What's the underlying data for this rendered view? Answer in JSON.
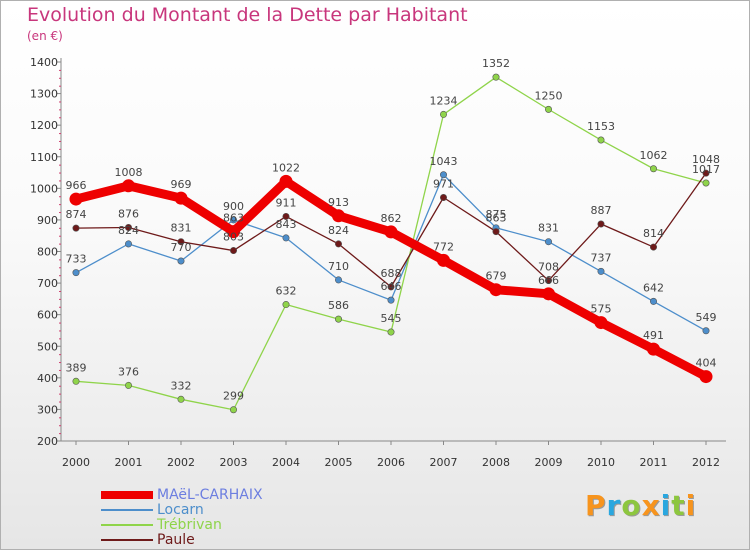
{
  "chart_data": {
    "type": "line",
    "title": "Evolution du Montant de la Dette par Habitant",
    "subtitle": "(en €)",
    "xlabel": "",
    "ylabel": "",
    "categories": [
      "2000",
      "2001",
      "2002",
      "2003",
      "2004",
      "2005",
      "2006",
      "2007",
      "2008",
      "2009",
      "2010",
      "2011",
      "2012"
    ],
    "ylim": [
      200,
      1400
    ],
    "yticks": [
      200,
      300,
      400,
      500,
      600,
      700,
      800,
      900,
      1000,
      1100,
      1200,
      1300,
      1400
    ],
    "grid": false,
    "legend_position": "bottom-left",
    "series": [
      {
        "name": "MAëL-CARHAIX",
        "color": "#ee0000",
        "values": [
          966,
          1008,
          969,
          863,
          1022,
          913,
          862,
          772,
          679,
          666,
          575,
          491,
          404
        ]
      },
      {
        "name": "Locarn",
        "color": "#4d8ecb",
        "values": [
          733,
          824,
          770,
          900,
          843,
          710,
          646,
          1043,
          875,
          831,
          737,
          642,
          549
        ]
      },
      {
        "name": "Trébrivan",
        "color": "#8fd44a",
        "values": [
          389,
          376,
          332,
          299,
          632,
          586,
          545,
          1234,
          1352,
          1250,
          1153,
          1062,
          1017
        ]
      },
      {
        "name": "Paule",
        "color": "#6e1a1a",
        "values": [
          874,
          876,
          831,
          803,
          911,
          824,
          688,
          971,
          863,
          708,
          887,
          814,
          1048
        ]
      }
    ],
    "data_labels": [
      {
        "text": "966",
        "category": "2000",
        "value": 966
      },
      {
        "text": "1008",
        "category": "2001",
        "value": 1008
      },
      {
        "text": "969",
        "category": "2002",
        "value": 969
      },
      {
        "text": "863",
        "category": "2003",
        "value": 863
      },
      {
        "text": "1022",
        "category": "2004",
        "value": 1022
      },
      {
        "text": "913",
        "category": "2005",
        "value": 913
      },
      {
        "text": "862",
        "category": "2006",
        "value": 862
      },
      {
        "text": "772",
        "category": "2007",
        "value": 772
      },
      {
        "text": "679",
        "category": "2008",
        "value": 679
      },
      {
        "text": "666",
        "category": "2009",
        "value": 666
      },
      {
        "text": "575",
        "category": "2010",
        "value": 575
      },
      {
        "text": "491",
        "category": "2011",
        "value": 491
      },
      {
        "text": "404",
        "category": "2012",
        "value": 404
      },
      {
        "text": "733",
        "category": "2000",
        "value": 733
      },
      {
        "text": "824",
        "category": "2001",
        "value": 824
      },
      {
        "text": "770",
        "category": "2002",
        "value": 770
      },
      {
        "text": "900",
        "category": "2003",
        "value": 900
      },
      {
        "text": "843",
        "category": "2004",
        "value": 843
      },
      {
        "text": "710",
        "category": "2005",
        "value": 710
      },
      {
        "text": "646",
        "category": "2006",
        "value": 646
      },
      {
        "text": "1043",
        "category": "2007",
        "value": 1043
      },
      {
        "text": "875",
        "category": "2008",
        "value": 875
      },
      {
        "text": "831",
        "category": "2009",
        "value": 831
      },
      {
        "text": "737",
        "category": "2010",
        "value": 737
      },
      {
        "text": "642",
        "category": "2011",
        "value": 642
      },
      {
        "text": "549",
        "category": "2012",
        "value": 549
      },
      {
        "text": "389",
        "category": "2000",
        "value": 389
      },
      {
        "text": "376",
        "category": "2001",
        "value": 376
      },
      {
        "text": "332",
        "category": "2002",
        "value": 332
      },
      {
        "text": "299",
        "category": "2003",
        "value": 299
      },
      {
        "text": "632",
        "category": "2004",
        "value": 632
      },
      {
        "text": "586",
        "category": "2005",
        "value": 586
      },
      {
        "text": "545",
        "category": "2006",
        "value": 545
      },
      {
        "text": "1234",
        "category": "2007",
        "value": 1234
      },
      {
        "text": "1352",
        "category": "2008",
        "value": 1352
      },
      {
        "text": "1250",
        "category": "2009",
        "value": 1250
      },
      {
        "text": "1153",
        "category": "2010",
        "value": 1153
      },
      {
        "text": "1062",
        "category": "2011",
        "value": 1062
      },
      {
        "text": "1017",
        "category": "2012",
        "value": 1017
      },
      {
        "text": "874",
        "category": "2000",
        "value": 874
      },
      {
        "text": "876",
        "category": "2001",
        "value": 876
      },
      {
        "text": "831",
        "category": "2002",
        "value": 831
      },
      {
        "text": "803",
        "category": "2003",
        "value": 803
      },
      {
        "text": "911",
        "category": "2004",
        "value": 911
      },
      {
        "text": "824",
        "category": "2005",
        "value": 824
      },
      {
        "text": "688",
        "category": "2006",
        "value": 688
      },
      {
        "text": "971",
        "category": "2007",
        "value": 971
      },
      {
        "text": "863",
        "category": "2008",
        "value": 863
      },
      {
        "text": "708",
        "category": "2009",
        "value": 708
      },
      {
        "text": "887",
        "category": "2010",
        "value": 887
      },
      {
        "text": "814",
        "category": "2011",
        "value": 814
      },
      {
        "text": "1048",
        "category": "2012",
        "value": 1048
      }
    ]
  },
  "logo": {
    "text": "Proxiti",
    "letters": [
      {
        "ch": "P",
        "color": "#f7941d"
      },
      {
        "ch": "r",
        "color": "#2aa7df"
      },
      {
        "ch": "o",
        "color": "#8dc63f"
      },
      {
        "ch": "x",
        "color": "#f7941d"
      },
      {
        "ch": "i",
        "color": "#2aa7df"
      },
      {
        "ch": "t",
        "color": "#8dc63f"
      },
      {
        "ch": "i",
        "color": "#f7941d"
      }
    ]
  }
}
